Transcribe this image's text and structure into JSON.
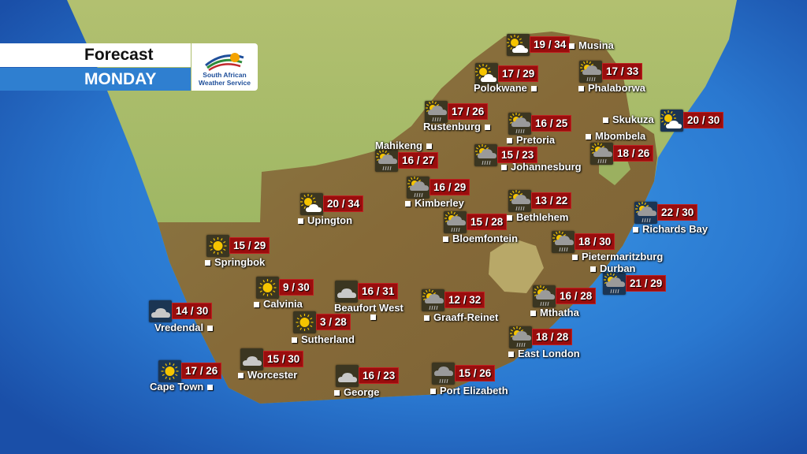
{
  "header": {
    "title": "Forecast",
    "day": "MONDAY"
  },
  "logo": {
    "line1": "South African",
    "line2": "Weather Service"
  },
  "colors": {
    "temp_box": "#9a0d0d",
    "header_blue": "#2f7fd0",
    "inland_icon_box": "#3b3621",
    "coastal_icon_box": "#1b3553",
    "sun": "#f5c400",
    "cloud": "#c8c8c8"
  },
  "stations": [
    {
      "name": "Musina",
      "temp": "19 / 34",
      "icon": "partly-cloudy-icon",
      "box": "land"
    },
    {
      "name": "Polokwane",
      "temp": "17 / 29",
      "icon": "partly-cloudy-icon",
      "box": "land"
    },
    {
      "name": "Phalaborwa",
      "temp": "17 / 33",
      "icon": "sun-cloud-rain-icon",
      "box": "land"
    },
    {
      "name": "Rustenburg",
      "temp": "17 / 26",
      "icon": "sun-cloud-rain-icon",
      "box": "land"
    },
    {
      "name": "Pretoria",
      "temp": "16 / 25",
      "icon": "sun-cloud-rain-icon",
      "box": "land"
    },
    {
      "name": "Skukuza",
      "temp": "20 / 30",
      "icon": "partly-cloudy-icon",
      "box": "coast"
    },
    {
      "name": "Mbombela",
      "temp": "18 / 26",
      "icon": "sun-cloud-rain-icon",
      "box": "land"
    },
    {
      "name": "Mahikeng",
      "temp": "16 / 27",
      "icon": "sun-cloud-rain-icon",
      "box": "land"
    },
    {
      "name": "Johannesburg",
      "temp": "15 / 23",
      "icon": "sun-cloud-rain-icon",
      "box": "land"
    },
    {
      "name": "Kimberley",
      "temp": "16 / 29",
      "icon": "sun-cloud-rain-icon",
      "box": "land"
    },
    {
      "name": "Bethlehem",
      "temp": "13 / 22",
      "icon": "sun-cloud-rain-icon",
      "box": "land"
    },
    {
      "name": "Richards Bay",
      "temp": "22 / 30",
      "icon": "sun-cloud-rain-icon",
      "box": "coast"
    },
    {
      "name": "Bloemfontein",
      "temp": "15 / 28",
      "icon": "sun-cloud-rain-icon",
      "box": "land"
    },
    {
      "name": "Pietermaritzburg",
      "temp": "18 / 30",
      "icon": "sun-cloud-rain-icon",
      "box": "land"
    },
    {
      "name": "Durban",
      "temp": "21 / 29",
      "icon": "sun-cloud-rain-icon",
      "box": "coast"
    },
    {
      "name": "Upington",
      "temp": "20 / 34",
      "icon": "partly-cloudy-icon",
      "box": "land"
    },
    {
      "name": "Springbok",
      "temp": "15 / 29",
      "icon": "sun-icon",
      "box": "land"
    },
    {
      "name": "Calvinia",
      "temp": "9 / 30",
      "icon": "sun-icon",
      "box": "land"
    },
    {
      "name": "Beaufort West",
      "temp": "16 / 31",
      "icon": "cloud-icon",
      "box": "land"
    },
    {
      "name": "Graaff-Reinet",
      "temp": "12 / 32",
      "icon": "sun-cloud-rain-icon",
      "box": "land"
    },
    {
      "name": "Mthatha",
      "temp": "16 / 28",
      "icon": "sun-cloud-rain-icon",
      "box": "land"
    },
    {
      "name": "Vredendal",
      "temp": "14 / 30",
      "icon": "cloud-icon",
      "box": "coast"
    },
    {
      "name": "Sutherland",
      "temp": "3 / 28",
      "icon": "sun-icon",
      "box": "land"
    },
    {
      "name": "East London",
      "temp": "18 / 28",
      "icon": "sun-cloud-rain-icon",
      "box": "land"
    },
    {
      "name": "Worcester",
      "temp": "15 / 30",
      "icon": "cloud-icon",
      "box": "land"
    },
    {
      "name": "Cape Town",
      "temp": "17 / 26",
      "icon": "sun-icon",
      "box": "coast"
    },
    {
      "name": "George",
      "temp": "16 / 23",
      "icon": "cloud-icon",
      "box": "land"
    },
    {
      "name": "Port Elizabeth",
      "temp": "15 / 26",
      "icon": "rain-icon",
      "box": "land"
    }
  ]
}
